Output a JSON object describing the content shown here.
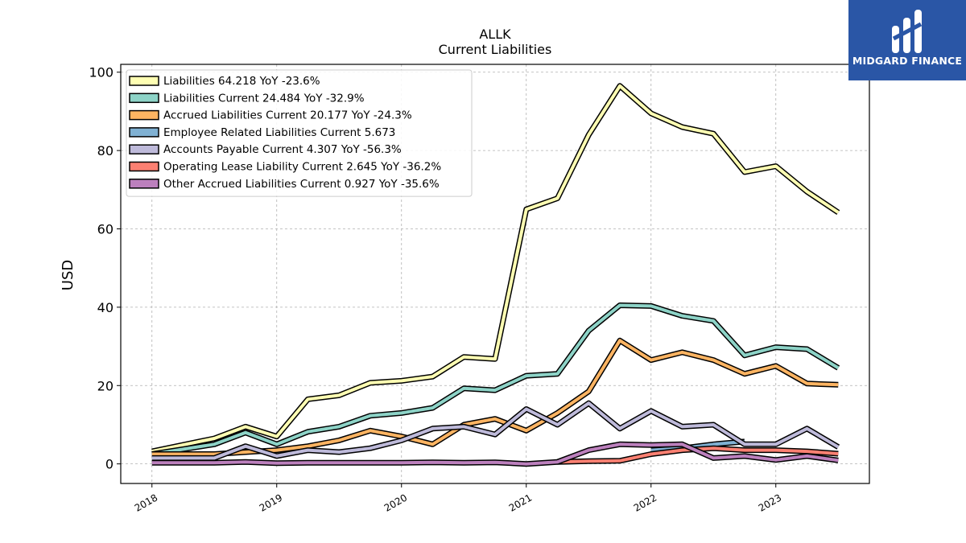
{
  "logo": {
    "text": "MIDGARD FINANCE",
    "bg": "#2a56a6"
  },
  "chart_data": {
    "type": "line",
    "title": "ALLK",
    "subtitle": "Current  Liabilities",
    "ylabel": "USD",
    "xlabel": "",
    "ylim": [
      -5,
      102
    ],
    "xlim": [
      2017.75,
      2023.75
    ],
    "yticks": [
      0,
      20,
      40,
      60,
      80,
      100
    ],
    "xticks": [
      2018,
      2019,
      2020,
      2021,
      2022,
      2023
    ],
    "xtick_labels": [
      "2018",
      "2019",
      "2020",
      "2021",
      "2022",
      "2023"
    ],
    "grid": true,
    "legend_position": "top-left",
    "series": [
      {
        "name": "Liabilities  64.218 YoY -23.6%",
        "color": "#ffffb3",
        "x": [
          2018.0,
          2018.5,
          2018.75,
          2019.0,
          2019.25,
          2019.5,
          2019.75,
          2020.0,
          2020.25,
          2020.5,
          2020.75,
          2021.0,
          2021.25,
          2021.5,
          2021.75,
          2022.0,
          2022.25,
          2022.5,
          2022.75,
          2023.0,
          2023.25,
          2023.5
        ],
        "y": [
          3.2,
          6.5,
          9.5,
          7.0,
          16.5,
          17.5,
          20.7,
          21.2,
          22.3,
          27.3,
          26.8,
          65.0,
          67.8,
          84.0,
          96.5,
          89.5,
          86.0,
          84.3,
          74.5,
          76.0,
          69.5,
          64.2
        ]
      },
      {
        "name": "Liabilities Current  24.484 YoY -32.9%",
        "color": "#8dd3c7",
        "x": [
          2018.0,
          2018.5,
          2018.75,
          2019.0,
          2019.25,
          2019.5,
          2019.75,
          2020.0,
          2020.25,
          2020.5,
          2020.75,
          2021.0,
          2021.25,
          2021.5,
          2021.75,
          2022.0,
          2022.25,
          2022.5,
          2022.75,
          2023.0,
          2023.25,
          2023.5
        ],
        "y": [
          2.5,
          5.0,
          8.0,
          5.0,
          8.2,
          9.5,
          12.3,
          13.0,
          14.3,
          19.3,
          18.8,
          22.5,
          23.0,
          34.0,
          40.5,
          40.3,
          37.8,
          36.5,
          27.7,
          29.8,
          29.3,
          24.5
        ]
      },
      {
        "name": "Accrued Liabilities Current  20.177 YoY -24.3%",
        "color": "#fdb462",
        "x": [
          2018.0,
          2018.5,
          2018.75,
          2019.0,
          2019.25,
          2019.5,
          2019.75,
          2020.0,
          2020.25,
          2020.5,
          2020.75,
          2021.0,
          2021.25,
          2021.5,
          2021.75,
          2022.0,
          2022.25,
          2022.5,
          2022.75,
          2023.0,
          2023.25,
          2023.5
        ],
        "y": [
          2.5,
          2.5,
          3.0,
          3.5,
          4.5,
          6.0,
          8.5,
          7.0,
          5.0,
          10.0,
          11.5,
          8.5,
          13.0,
          18.5,
          31.5,
          26.5,
          28.5,
          26.5,
          23.0,
          25.0,
          20.5,
          20.2
        ]
      },
      {
        "name": "Employee Related Liabilities Current  5.673",
        "color": "#80b1d3",
        "x": [
          2022.0,
          2022.25,
          2022.5,
          2022.75
        ],
        "y": [
          3.5,
          4.0,
          5.0,
          5.7
        ]
      },
      {
        "name": "Accounts Payable Current  4.307 YoY -56.3%",
        "color": "#bebada",
        "x": [
          2018.0,
          2018.5,
          2018.75,
          2019.0,
          2019.25,
          2019.5,
          2019.75,
          2020.0,
          2020.25,
          2020.5,
          2020.75,
          2021.0,
          2021.25,
          2021.5,
          2021.75,
          2022.0,
          2022.25,
          2022.5,
          2022.75,
          2023.0,
          2023.25,
          2023.5
        ],
        "y": [
          1.5,
          1.5,
          4.5,
          2.0,
          3.5,
          3.0,
          4.0,
          6.0,
          9.0,
          9.5,
          7.5,
          14.0,
          10.0,
          15.5,
          9.0,
          13.5,
          9.5,
          10.0,
          5.0,
          5.0,
          9.0,
          4.3
        ]
      },
      {
        "name": "Operating Lease Liability Current  2.645 YoY -36.2%",
        "color": "#fb8072",
        "x": [
          2021.25,
          2021.5,
          2021.75,
          2022.0,
          2022.25,
          2022.5,
          2022.75,
          2023.0,
          2023.25,
          2023.5
        ],
        "y": [
          0.5,
          0.7,
          0.8,
          2.5,
          3.5,
          4.0,
          3.5,
          3.5,
          3.2,
          2.6
        ]
      },
      {
        "name": "Other Accrued Liabilities Current  0.927 YoY -35.6%",
        "color": "#bc80bd",
        "x": [
          2018.0,
          2018.5,
          2018.75,
          2019.0,
          2019.25,
          2019.5,
          2019.75,
          2020.0,
          2020.25,
          2020.5,
          2020.75,
          2021.0,
          2021.25,
          2021.5,
          2021.75,
          2022.0,
          2022.25,
          2022.5,
          2022.75,
          2023.0,
          2023.25,
          2023.5
        ],
        "y": [
          0.3,
          0.3,
          0.5,
          0.2,
          0.3,
          0.3,
          0.3,
          0.3,
          0.4,
          0.3,
          0.4,
          0.0,
          0.5,
          3.5,
          5.0,
          4.8,
          5.0,
          1.5,
          2.0,
          1.0,
          2.0,
          0.9
        ]
      }
    ]
  }
}
